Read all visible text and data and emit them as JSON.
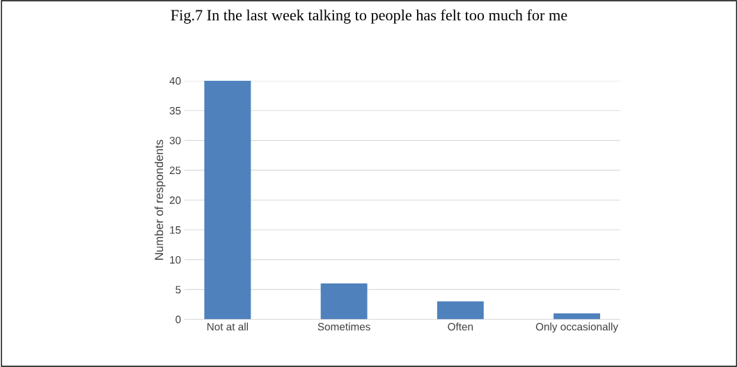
{
  "chart_data": {
    "type": "bar",
    "title": "Fig.7 In the last week talking to people has felt too much for me",
    "ylabel": "Number of respondents",
    "categories": [
      "Not at all",
      "Sometimes",
      "Often",
      "Only occasionally"
    ],
    "values": [
      40,
      6,
      3,
      1
    ],
    "color": "#4f81bd",
    "ylim": [
      0,
      40
    ],
    "yticks": [
      0,
      5,
      10,
      15,
      20,
      25,
      30,
      35,
      40
    ],
    "grid": "y"
  }
}
